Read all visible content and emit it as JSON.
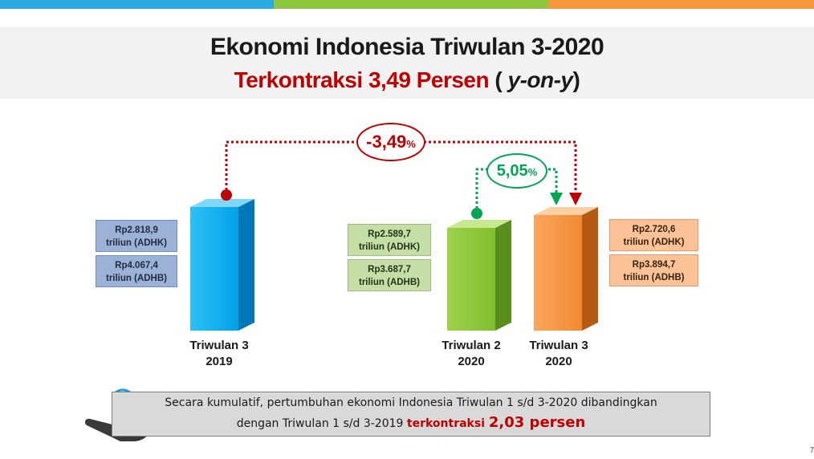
{
  "colors": {
    "bar_2019": "#00b0f0",
    "bar_q2_2020": "#8dc63f",
    "bar_q3_2020": "#f7913d",
    "red": "#c00000",
    "green": "#00a651",
    "topbar": [
      "#29abe2",
      "#8cc63f",
      "#f7963d"
    ]
  },
  "header": {
    "title": "Ekonomi Indonesia Triwulan 3-2020",
    "subtitle_main": "Terkontraksi 3,49 Persen",
    "subtitle_open": "(",
    "subtitle_yoy": "y-on-y",
    "subtitle_close": ")"
  },
  "chart_data": {
    "type": "bar",
    "categories": [
      "Triwulan 3 2019",
      "Triwulan 2 2020",
      "Triwulan 3 2020"
    ],
    "series": [
      {
        "name": "ADHK",
        "values": [
          2818.9,
          2589.7,
          2720.6
        ]
      },
      {
        "name": "ADHB",
        "values": [
          4067.4,
          3687.7,
          3894.7
        ]
      }
    ],
    "annotations": {
      "yoy": "-3,49",
      "qtq": "5,05",
      "unit": "%"
    }
  },
  "bars": [
    {
      "label_line1": "Triwulan 3",
      "label_line2": "2019",
      "adhk_value": "Rp2.818,9",
      "adhk_unit": "triliun (ADHK)",
      "adhb_value": "Rp4.067,4",
      "adhb_unit": "triliun (ADHB)"
    },
    {
      "label_line1": "Triwulan 2",
      "label_line2": "2020",
      "adhk_value": "Rp2.589,7",
      "adhk_unit": "triliun (ADHK)",
      "adhb_value": "Rp3.687,7",
      "adhb_unit": "triliun (ADHB)"
    },
    {
      "label_line1": "Triwulan 3",
      "label_line2": "2020",
      "adhk_value": "Rp2.720,6",
      "adhk_unit": "triliun (ADHK)",
      "adhb_value": "Rp3.894,7",
      "adhb_unit": "triliun (ADHB)"
    }
  ],
  "growth": {
    "yoy_value": "-3,49",
    "qtq_value": "5,05",
    "unit": "%"
  },
  "footer": {
    "line1": "Secara kumulatif, pertumbuhan ekonomi Indonesia Triwulan 1 s/d 3-2020 dibandingkan",
    "line2_prefix": "dengan Triwulan 1 s/d 3-2019 ",
    "line2_red": "terkontraksi ",
    "line2_value": "2,03 persen",
    "icon": "hand-pointer-icon"
  },
  "page_number": "7"
}
